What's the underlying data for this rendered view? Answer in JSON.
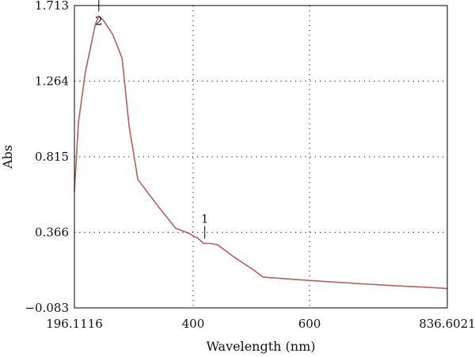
{
  "chart_data": {
    "type": "line",
    "title": "",
    "xlabel": "Wavelength (nm)",
    "ylabel": "Abs",
    "xlim": [
      196.1116,
      836.6021
    ],
    "ylim": [
      -0.083,
      1.713
    ],
    "x_ticks": [
      196.1116,
      400,
      600,
      836.6021
    ],
    "x_tick_labels": [
      "196.1116",
      "400",
      "600",
      "836.6021"
    ],
    "y_ticks": [
      -0.083,
      0.366,
      0.815,
      1.264,
      1.713
    ],
    "y_tick_labels": [
      "−0.083",
      "0.366",
      "0.815",
      "1.264",
      "1.713"
    ],
    "grid": true,
    "line_color": "#b5605a",
    "series": [
      {
        "x": [
          196.1,
          203,
          215,
          232,
          238,
          245,
          262,
          278,
          290,
          305,
          340,
          370,
          395,
          402,
          407,
          418,
          430,
          442,
          470,
          505,
          520,
          560,
          600,
          650,
          700,
          750,
          800,
          836.6
        ],
        "y": [
          0.61,
          1.02,
          1.32,
          1.6,
          1.65,
          1.63,
          1.54,
          1.4,
          1.0,
          0.68,
          0.52,
          0.39,
          0.357,
          0.34,
          0.335,
          0.3,
          0.3,
          0.292,
          0.22,
          0.14,
          0.1,
          0.09,
          0.08,
          0.069,
          0.058,
          0.048,
          0.04,
          0.032
        ]
      }
    ],
    "peaks": [
      {
        "label": "1",
        "x": 420,
        "y": 0.3
      },
      {
        "label": "2",
        "x": 238,
        "y": 1.65
      }
    ]
  }
}
